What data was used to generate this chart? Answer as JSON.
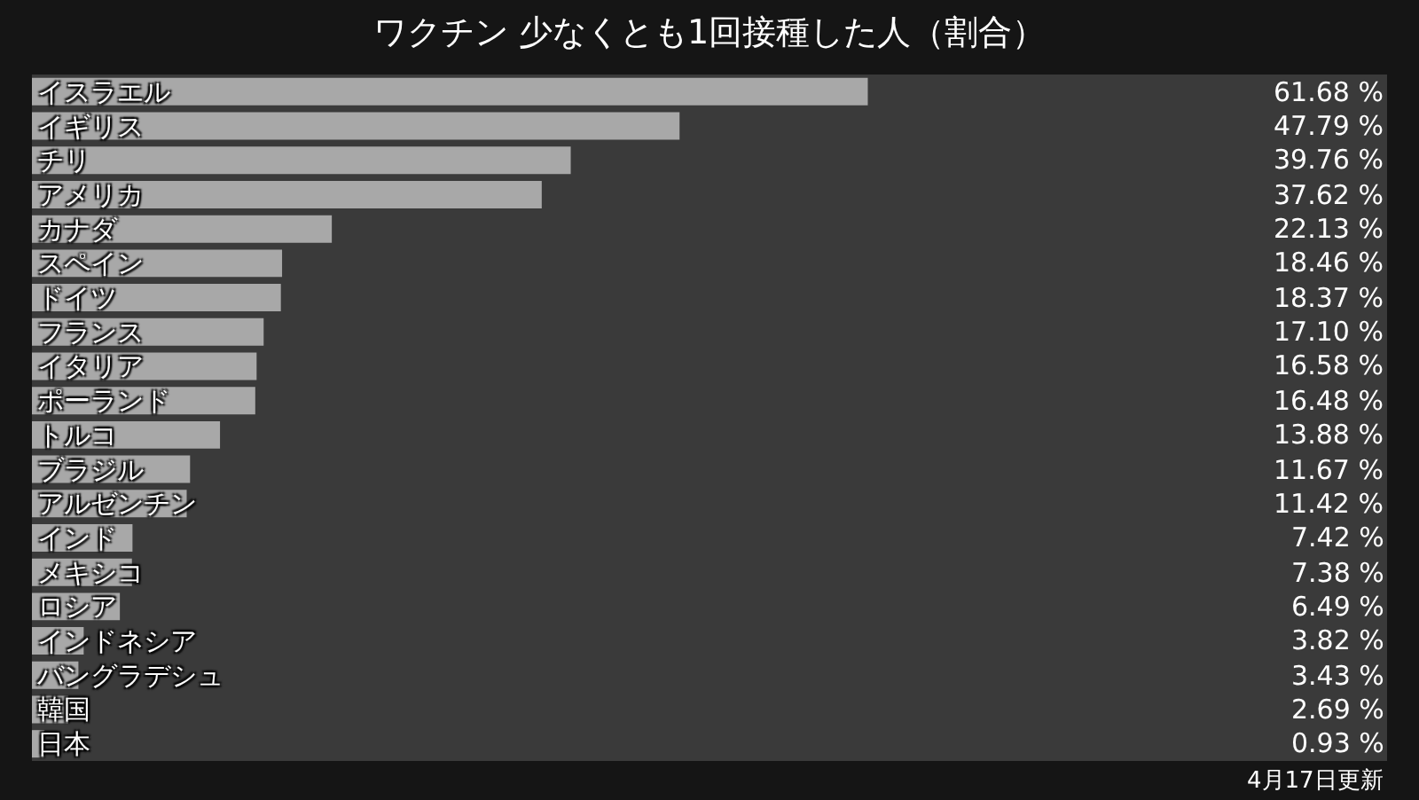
{
  "chart_data": {
    "type": "bar",
    "orientation": "horizontal",
    "title": "ワクチン 少なくとも1回接種した人（割合）",
    "categories": [
      "イスラエル",
      "イギリス",
      "チリ",
      "アメリカ",
      "カナダ",
      "スペイン",
      "ドイツ",
      "フランス",
      "イタリア",
      "ポーランド",
      "トルコ",
      "ブラジル",
      "アルゼンチン",
      "インド",
      "メキシコ",
      "ロシア",
      "インドネシア",
      "バングラデシュ",
      "韓国",
      "日本"
    ],
    "values": [
      61.68,
      47.79,
      39.76,
      37.62,
      22.13,
      18.46,
      18.37,
      17.1,
      16.58,
      16.48,
      13.88,
      11.67,
      11.42,
      7.42,
      7.38,
      6.49,
      3.82,
      3.43,
      2.69,
      0.93
    ],
    "value_labels": [
      "61.68 %",
      "47.79 %",
      "39.76 %",
      "37.62 %",
      "22.13 %",
      "18.46 %",
      "18.37 %",
      "17.10 %",
      "16.58 %",
      "16.48 %",
      "13.88 %",
      "11.67 %",
      "11.42 %",
      "7.42 %",
      "7.38 %",
      "6.49 %",
      "3.82 %",
      "3.43 %",
      "2.69 %",
      "0.93 %"
    ],
    "color": "#a8a8a8",
    "xlim": [
      0,
      100
    ],
    "tick_labels": "y",
    "grid": false,
    "annotations": [
      "4月17日更新"
    ]
  }
}
